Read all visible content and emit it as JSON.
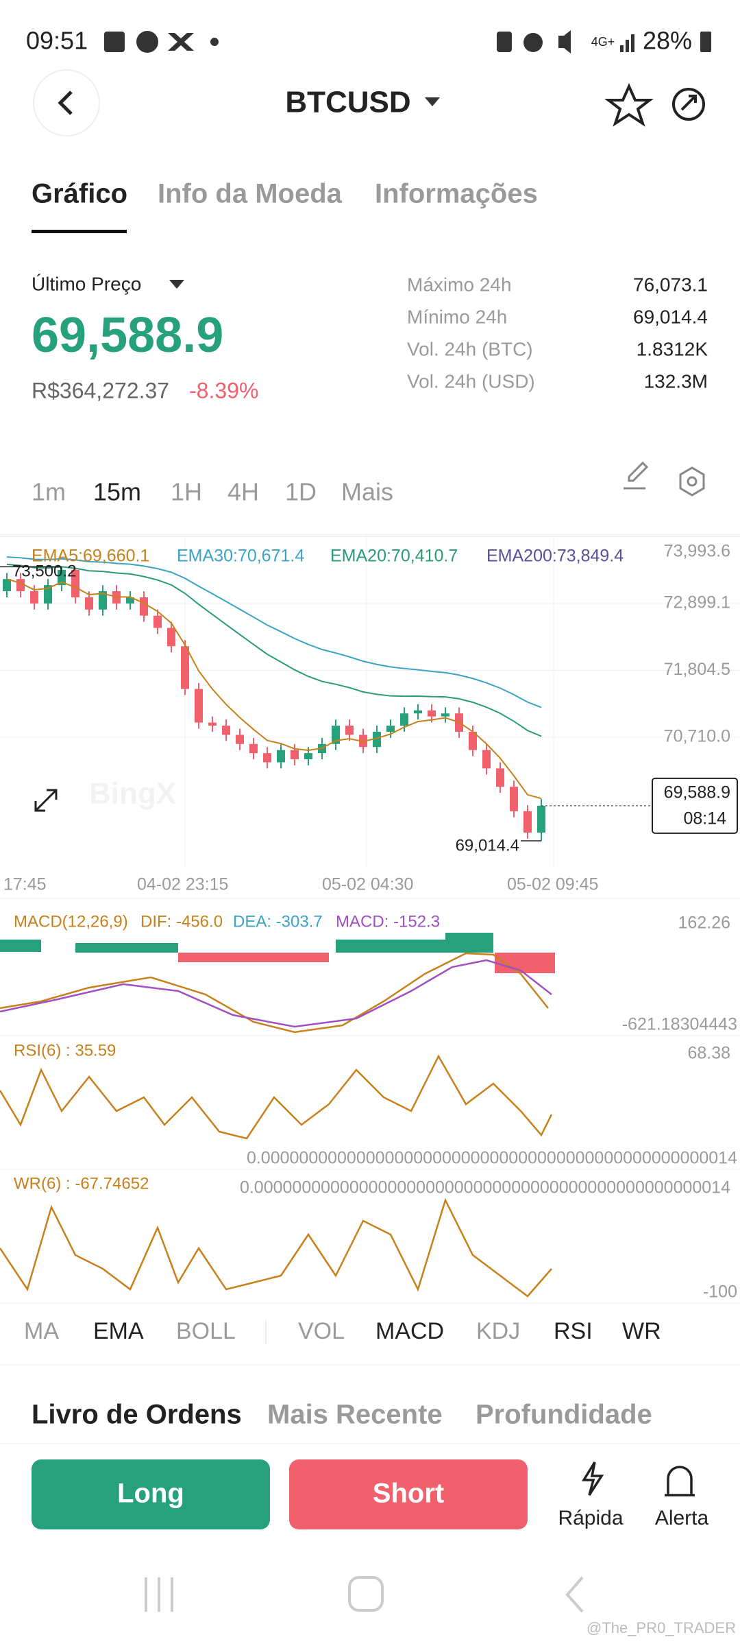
{
  "status": {
    "time": "09:51",
    "battery": "28%",
    "network": "4G+"
  },
  "header": {
    "title": "BTCUSD"
  },
  "tabs": [
    "Gráfico",
    "Info da Moeda",
    "Informações"
  ],
  "price": {
    "label": "Último Preço",
    "last": "69,588.9",
    "brl": "R$364,272.37",
    "change": "-8.39%"
  },
  "stats": [
    {
      "label": "Máximo 24h",
      "value": "76,073.1"
    },
    {
      "label": "Mínimo 24h",
      "value": "69,014.4"
    },
    {
      "label": "Vol. 24h (BTC)",
      "value": "1.8312K"
    },
    {
      "label": "Vol. 24h (USD)",
      "value": "132.3M"
    }
  ],
  "timeframes": [
    "1m",
    "15m",
    "1H",
    "4H",
    "1D",
    "Mais"
  ],
  "chart_data": {
    "type": "candlestick",
    "ema_legend": [
      "EMA5:69,660.1",
      "EMA30:70,671.4",
      "EMA20:70,410.7",
      "EMA200:73,849.4"
    ],
    "watermark": "BingX",
    "ylim": [
      68577,
      74021
    ],
    "yticks": [
      {
        "value": 73993.6,
        "label": "73,993.6"
      },
      {
        "value": 72899.1,
        "label": "72,899.1"
      },
      {
        "value": 71804.5,
        "label": "71,804.5"
      },
      {
        "value": 70710.0,
        "label": "70,710.0"
      }
    ],
    "x_labels": [
      "17:45",
      "04-02 23:15",
      "05-02 04:30",
      "05-02 09:45"
    ],
    "high_marker": {
      "value": 73500.2,
      "label": "73,500.2"
    },
    "low_marker": {
      "value": 69014.4,
      "label": "69,014.4"
    },
    "last_box": {
      "value": 69588.9,
      "label": "69,588.9",
      "countdown": "08:14"
    },
    "up_color": "#26a17b",
    "down_color": "#f0616d",
    "open": [
      73100,
      73300,
      73100,
      72900,
      73200,
      73450,
      73000,
      72800,
      73100,
      72900,
      73000,
      72700,
      72500,
      72200,
      71500,
      70950,
      70900,
      70750,
      70600,
      70450,
      70300,
      70500,
      70350,
      70450,
      70600,
      70900,
      70750,
      70550,
      70800,
      70900,
      71100,
      71150,
      71050,
      71100,
      70800,
      70500,
      70200,
      69900,
      69500,
      69150
    ],
    "high": [
      73400,
      73400,
      73200,
      73300,
      73500.2,
      73480,
      73100,
      73200,
      73200,
      73100,
      73100,
      72800,
      72600,
      72300,
      71600,
      71050,
      71000,
      70850,
      70700,
      70550,
      70600,
      70600,
      70550,
      70700,
      71000,
      71000,
      70850,
      70900,
      71000,
      71200,
      71250,
      71250,
      71200,
      71200,
      70900,
      70600,
      70300,
      70000,
      69600,
      69700
    ],
    "low": [
      73000,
      73000,
      72800,
      72800,
      73100,
      72900,
      72700,
      72700,
      72800,
      72800,
      72600,
      72400,
      72100,
      71400,
      70850,
      70800,
      70650,
      70500,
      70350,
      70200,
      70200,
      70250,
      70250,
      70350,
      70500,
      70650,
      70450,
      70450,
      70700,
      70800,
      71000,
      70950,
      70950,
      70700,
      70400,
      70100,
      69800,
      69400,
      69050,
      69014.4
    ],
    "close": [
      73300,
      73100,
      72900,
      73200,
      73450,
      73000,
      72800,
      73100,
      72900,
      73000,
      72700,
      72500,
      72200,
      71500,
      70950,
      70900,
      70750,
      70600,
      70450,
      70300,
      70500,
      70350,
      70450,
      70600,
      70900,
      70750,
      70550,
      70800,
      70900,
      71100,
      71150,
      71050,
      71100,
      70800,
      70500,
      70200,
      69900,
      69500,
      69150,
      69588.9
    ]
  },
  "macd": {
    "title": "MACD(12,26,9)",
    "dif": "DIF: -456.0",
    "dea": "DEA: -303.7",
    "macd": "MACD: -152.3",
    "max": "162.26",
    "min": "-621.18304443"
  },
  "rsi": {
    "title": "RSI(6) : 35.59",
    "max": "68.38",
    "min": "0.00000000000000000000000000000000000000000000000014"
  },
  "wr": {
    "title": "WR(6) : -67.74652",
    "max": "0.00000000000000000000000000000000000000000000000014",
    "min": "-100"
  },
  "indicators": [
    "MA",
    "EMA",
    "BOLL",
    "VOL",
    "MACD",
    "KDJ",
    "RSI",
    "WR"
  ],
  "book_tabs": [
    "Livro de Ordens",
    "Mais Recente",
    "Profundidade"
  ],
  "actions": {
    "long": "Long",
    "short": "Short",
    "quick": "Rápida",
    "alert": "Alerta"
  },
  "credit": "@The_PR0_TRADER"
}
